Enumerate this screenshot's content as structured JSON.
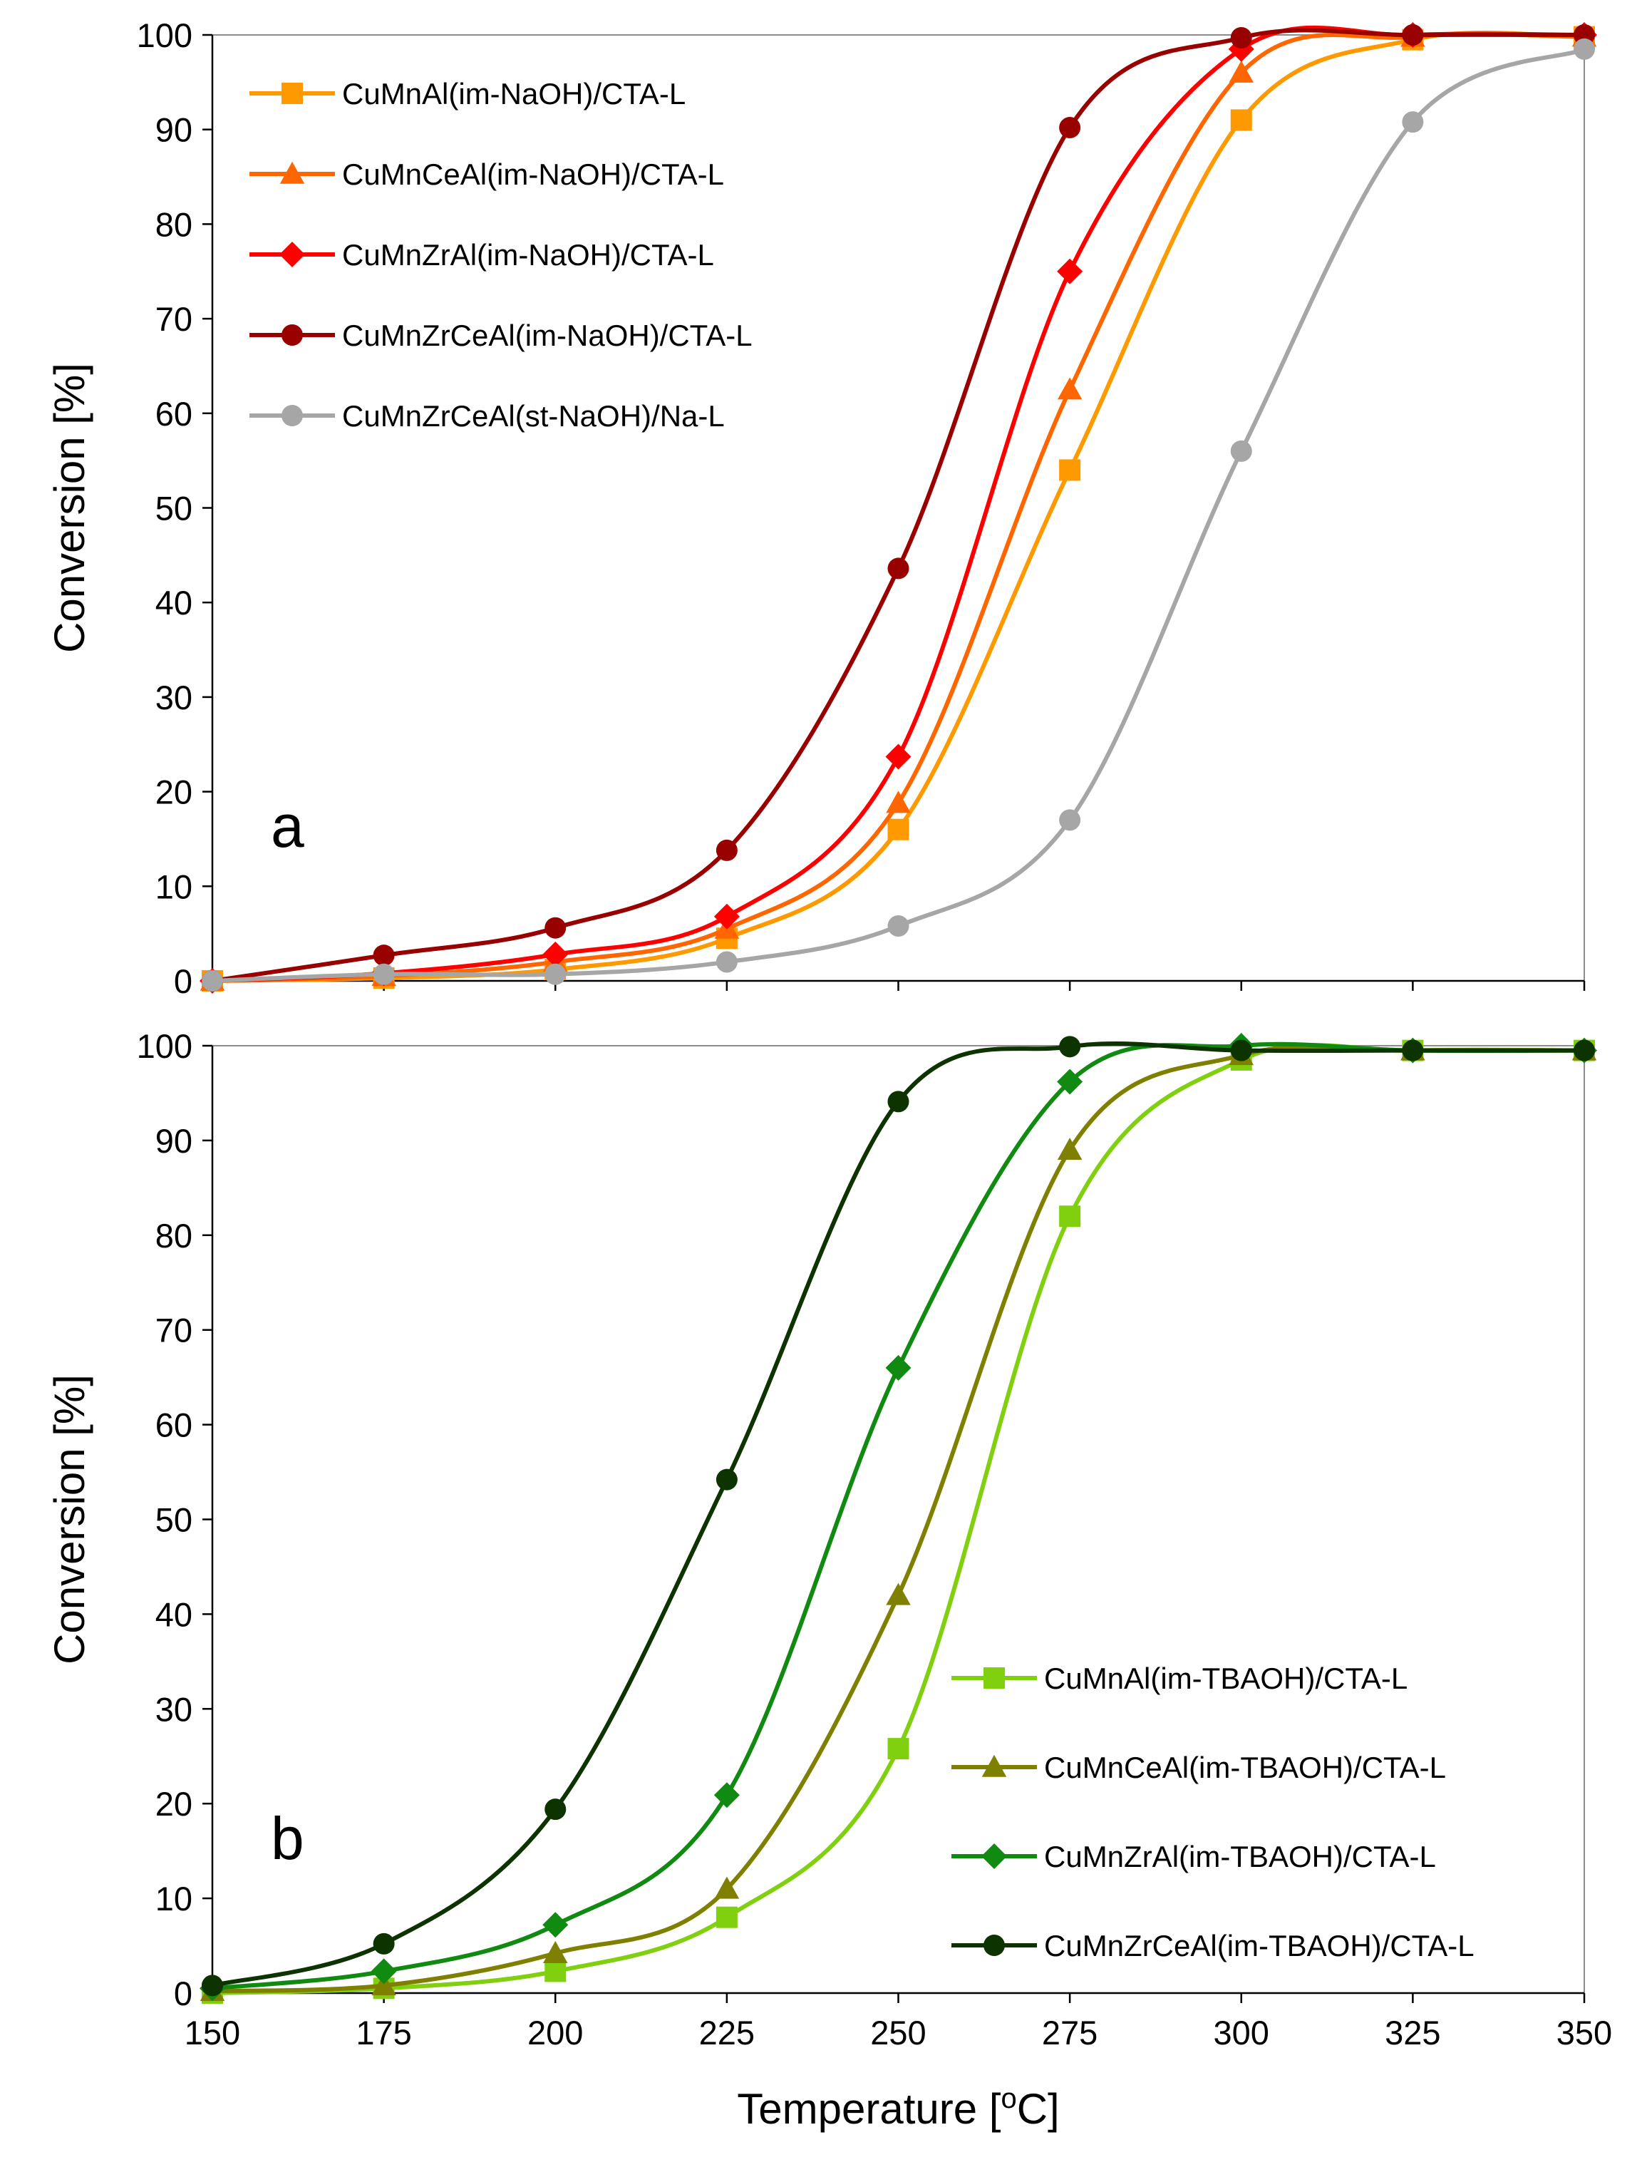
{
  "chart_data": [
    {
      "type": "line",
      "panel_label": "a",
      "xlabel": "",
      "ylabel": "Conversion [%]",
      "xlim": [
        150,
        350
      ],
      "ylim": [
        0,
        100
      ],
      "x_ticks": [
        150,
        175,
        200,
        225,
        250,
        275,
        300,
        325,
        350
      ],
      "y_ticks": [
        0,
        10,
        20,
        30,
        40,
        50,
        60,
        70,
        80,
        90,
        100
      ],
      "show_x_tick_labels": false,
      "legend_position": "top-left",
      "x": [
        150,
        175,
        200,
        225,
        250,
        275,
        300,
        325,
        350
      ],
      "series": [
        {
          "name": "CuMnAl(im-NaOH)/CTA-L",
          "color": "#ff9900",
          "marker": "square",
          "values": [
            0,
            0.3,
            1.2,
            4.5,
            16,
            54,
            91,
            99.5,
            99.8
          ]
        },
        {
          "name": "CuMnCeAl(im-NaOH)/CTA-L",
          "color": "#ff6600",
          "marker": "triangle",
          "values": [
            0,
            0.5,
            2,
            5.5,
            18.8,
            62.5,
            96,
            99.8,
            99.8
          ]
        },
        {
          "name": "CuMnZrAl(im-NaOH)/CTA-L",
          "color": "#ff0000",
          "marker": "diamond",
          "values": [
            0,
            0.8,
            2.8,
            6.8,
            23.7,
            75,
            98.5,
            100,
            100
          ]
        },
        {
          "name": "CuMnZrCeAl(im-NaOH)/CTA-L",
          "color": "#990000",
          "marker": "circle",
          "values": [
            0,
            2.7,
            5.6,
            13.8,
            43.6,
            90.2,
            99.7,
            100,
            100
          ]
        },
        {
          "name": "CuMnZrCeAl(st-NaOH)/Na-L",
          "color": "#a6a6a6",
          "marker": "circle",
          "values": [
            0,
            0.7,
            0.7,
            2,
            5.8,
            17,
            56,
            90.8,
            98.5
          ]
        }
      ]
    },
    {
      "type": "line",
      "panel_label": "b",
      "xlabel": "Temperature [°C]",
      "ylabel": "Conversion [%]",
      "xlim": [
        150,
        350
      ],
      "ylim": [
        0,
        100
      ],
      "x_ticks": [
        150,
        175,
        200,
        225,
        250,
        275,
        300,
        325,
        350
      ],
      "y_ticks": [
        0,
        10,
        20,
        30,
        40,
        50,
        60,
        70,
        80,
        90,
        100
      ],
      "show_x_tick_labels": true,
      "legend_position": "bottom-right",
      "x": [
        150,
        175,
        200,
        225,
        250,
        275,
        300,
        325,
        350
      ],
      "series": [
        {
          "name": "CuMnAl(im-TBAOH)/CTA-L",
          "color": "#80d010",
          "marker": "square",
          "values": [
            0,
            0.5,
            2.3,
            8,
            25.8,
            82,
            98.5,
            99.5,
            99.5
          ]
        },
        {
          "name": "CuMnCeAl(im-TBAOH)/CTA-L",
          "color": "#808000",
          "marker": "triangle",
          "values": [
            0.2,
            0.8,
            4.2,
            11,
            42,
            89,
            99,
            99.5,
            99.5
          ]
        },
        {
          "name": "CuMnZrAl(im-TBAOH)/CTA-L",
          "color": "#108a10",
          "marker": "diamond",
          "values": [
            0.5,
            2.3,
            7.2,
            20.9,
            66,
            96.2,
            100,
            99.5,
            99.5
          ]
        },
        {
          "name": "CuMnZrCeAl(im-TBAOH)/CTA-L",
          "color": "#0d3300",
          "marker": "circle",
          "values": [
            0.8,
            5.2,
            19.4,
            54.2,
            94.1,
            99.9,
            99.5,
            99.5,
            99.5
          ]
        }
      ]
    }
  ]
}
